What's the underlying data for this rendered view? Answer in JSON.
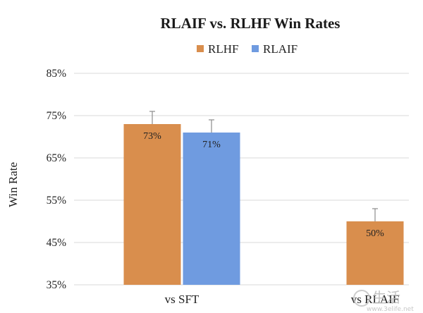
{
  "chart_data": {
    "type": "bar",
    "title": "RLAIF vs. RLHF Win Rates",
    "xlabel": "",
    "ylabel": "Win Rate",
    "ylim": [
      35,
      85
    ],
    "yticks": [
      "85%",
      "75%",
      "65%",
      "55%",
      "45%",
      "35%"
    ],
    "ytick_values": [
      85,
      75,
      65,
      55,
      45,
      35
    ],
    "grid": true,
    "legend_position": "top-center",
    "categories": [
      "vs SFT",
      "vs RLAIF"
    ],
    "series": [
      {
        "name": "RLHF",
        "color": "#d98e4d",
        "values": [
          73,
          50
        ],
        "labels": [
          "73%",
          "50%"
        ],
        "error_high": [
          76,
          53
        ]
      },
      {
        "name": "RLAIF",
        "color": "#6f9be0",
        "values": [
          71,
          null
        ],
        "labels": [
          "71%",
          ""
        ],
        "error_high": [
          74,
          null
        ]
      }
    ]
  },
  "watermark": {
    "text": "生活",
    "subtext": "www.3elife.net"
  }
}
